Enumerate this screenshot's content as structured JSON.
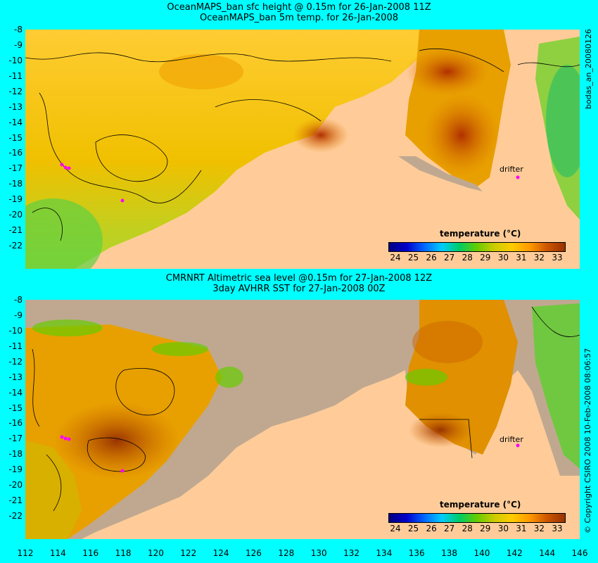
{
  "top": {
    "title_line1": "OceanMAPS_ban sfc height @ 0.15m for 26-Jan-2008 11Z",
    "title_line2": "OceanMAPS_ban 5m temp. for 26-Jan-2008",
    "side_label": "bodas_an_20080126",
    "drifter_label": "drifter"
  },
  "bottom": {
    "title_line1": "CMRNRT Altimetric sea level  @0.15m  for 27-Jan-2008 12Z",
    "title_line2": "3day AVHRR SST for 27-Jan-2008 00Z",
    "side_label": "© Copyright CSIRO 2008   10-Feb-2008 08:06:57",
    "drifter_label": "drifter"
  },
  "colorbar": {
    "title": "temperature (°C)",
    "ticks": [
      "24",
      "25",
      "26",
      "27",
      "28",
      "29",
      "30",
      "31",
      "32",
      "33"
    ],
    "colors": [
      "#000080",
      "#0000cc",
      "#0066ff",
      "#00ccff",
      "#00cc66",
      "#66cc00",
      "#cccc00",
      "#ffcc00",
      "#ff9900",
      "#cc5500",
      "#993300"
    ]
  },
  "axes": {
    "y_ticks": [
      "-8",
      "-9",
      "-10",
      "-11",
      "-12",
      "-13",
      "-14",
      "-15",
      "-16",
      "-17",
      "-18",
      "-19",
      "-20",
      "-21",
      "-22"
    ],
    "x_ticks": [
      "112",
      "114",
      "116",
      "118",
      "120",
      "122",
      "124",
      "126",
      "128",
      "130",
      "132",
      "134",
      "136",
      "138",
      "140",
      "142",
      "144",
      "146"
    ]
  },
  "colors": {
    "background": "#00ffff",
    "land": "#ffcc99",
    "no_data": "#c0a890",
    "drifter_marker": "#ff00ff"
  }
}
